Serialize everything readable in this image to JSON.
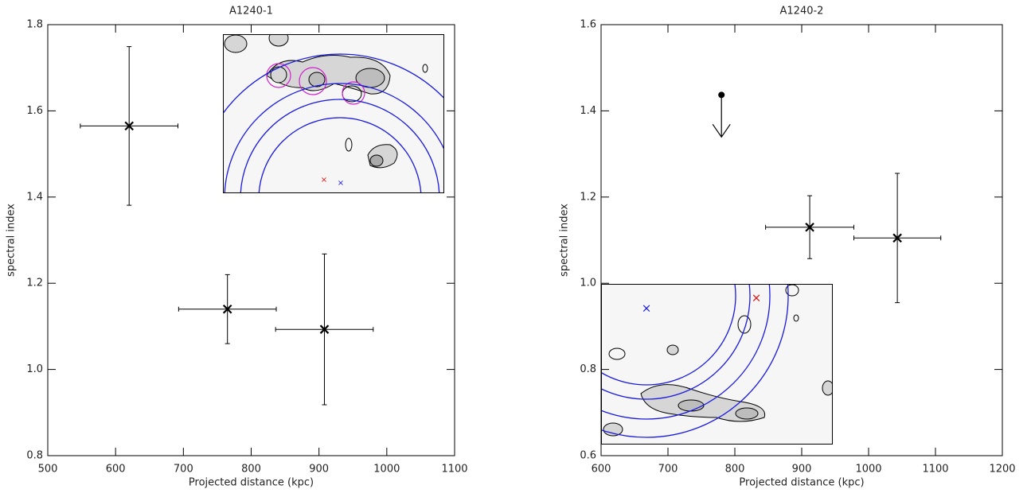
{
  "chart_data": [
    {
      "type": "scatter",
      "title": "A1240-1",
      "xlabel": "Projected distance (kpc)",
      "ylabel": "spectral index",
      "xlim": [
        500,
        1100
      ],
      "ylim": [
        0.8,
        1.8
      ],
      "xticks": [
        500,
        600,
        700,
        800,
        900,
        1000,
        1100
      ],
      "yticks": [
        0.8,
        {
          "value": 1.0,
          "label": "1.0"
        },
        1.2,
        1.4,
        1.6,
        1.8
      ],
      "series": [
        {
          "color": "#000000",
          "x": [
            620,
            765,
            908
          ],
          "values": [
            1.565,
            1.14,
            1.093
          ],
          "xerr": [
            72,
            72,
            72
          ],
          "yerr": [
            0.184,
            0.08,
            0.175
          ]
        }
      ]
    },
    {
      "type": "scatter",
      "title": "A1240-2",
      "xlabel": "Projected distance (kpc)",
      "ylabel": "spectral index",
      "xlim": [
        600,
        1200
      ],
      "ylim": [
        0.6,
        1.6
      ],
      "xticks": [
        600,
        700,
        800,
        900,
        1000,
        1100,
        1200
      ],
      "yticks": [
        0.6,
        0.8,
        {
          "value": 1.0,
          "label": "1.0"
        },
        1.2,
        1.4,
        1.6
      ],
      "series": [
        {
          "color": "#000000",
          "x": [
            912,
            1043
          ],
          "values": [
            1.13,
            1.105
          ],
          "xerr": [
            66,
            65
          ],
          "yerr": [
            0.073,
            0.15
          ]
        }
      ],
      "upper_limits": {
        "color": "#000000",
        "x": [
          780
        ],
        "values": [
          1.437
        ]
      }
    }
  ]
}
